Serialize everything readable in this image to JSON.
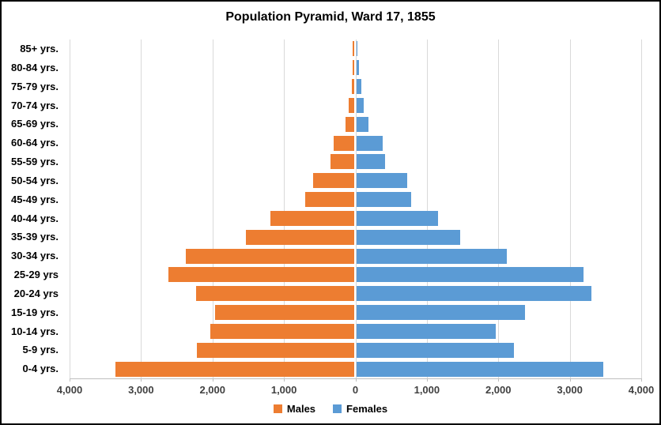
{
  "title": "Population Pyramid, Ward 17, 1855",
  "chart_data": {
    "type": "bar",
    "subtype": "population-pyramid",
    "title": "Population Pyramid, Ward 17, 1855",
    "categories": [
      "85+ yrs.",
      "80-84 yrs.",
      "75-79 yrs.",
      "70-74 yrs.",
      "65-69 yrs.",
      "60-64 yrs.",
      "55-59 yrs.",
      "50-54 yrs.",
      "45-49 yrs.",
      "40-44 yrs.",
      "35-39 yrs.",
      "30-34 yrs.",
      "25-29 yrs",
      "20-24 yrs",
      "15-19 yrs.",
      "10-14 yrs.",
      "5-9 yrs.",
      "0-4 yrs."
    ],
    "series": [
      {
        "name": "Males",
        "side": "left",
        "color": "#ED7D31",
        "values": [
          20,
          20,
          35,
          75,
          120,
          290,
          335,
          580,
          685,
          1180,
          1520,
          2365,
          2600,
          2220,
          1945,
          2015,
          2200,
          3340
        ]
      },
      {
        "name": "Females",
        "side": "right",
        "color": "#5B9BD5",
        "values": [
          5,
          40,
          70,
          100,
          170,
          370,
          405,
          710,
          765,
          1140,
          1450,
          2105,
          3180,
          3290,
          2360,
          1950,
          2200,
          3450
        ]
      }
    ],
    "x_axis": {
      "tick_values": [
        -4000,
        -3000,
        -2000,
        -1000,
        0,
        1000,
        2000,
        3000,
        4000
      ],
      "tick_labels": [
        "4,000",
        "3,000",
        "2,000",
        "1,000",
        "0",
        "1,000",
        "2,000",
        "3,000",
        "4,000"
      ],
      "min": -4000,
      "max": 4000
    },
    "legend": {
      "position": "bottom",
      "entries": [
        "Males",
        "Females"
      ]
    },
    "gridlines": true,
    "colors": {
      "males": "#ED7D31",
      "females": "#5B9BD5",
      "gridline": "#d9d9d9",
      "axis_text": "#404040",
      "category_text": "#000000",
      "border": "#000000",
      "background": "#ffffff"
    }
  }
}
